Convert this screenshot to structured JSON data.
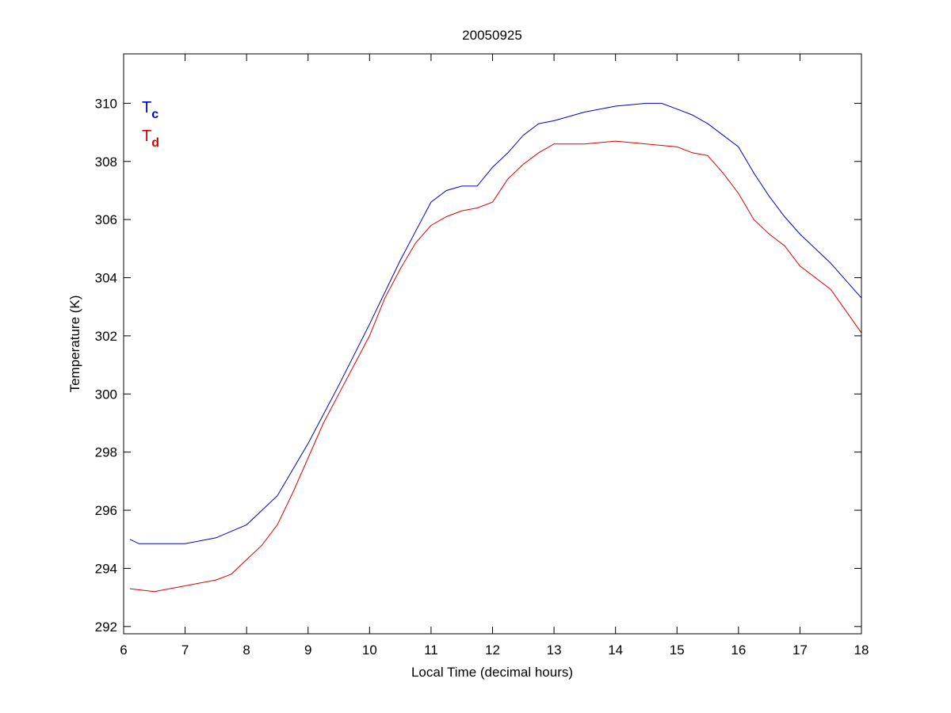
{
  "chart_data": {
    "type": "line",
    "title": "20050925",
    "xlabel": "Local Time (decimal hours)",
    "ylabel": "Temperature (K)",
    "xlim": [
      6,
      18
    ],
    "ylim": [
      291.75,
      311.7
    ],
    "xticks": [
      6,
      7,
      8,
      9,
      10,
      11,
      12,
      13,
      14,
      15,
      16,
      17,
      18
    ],
    "yticks": [
      292,
      294,
      296,
      298,
      300,
      302,
      304,
      306,
      308,
      310
    ],
    "grid": false,
    "legend_position": "top-left",
    "series": [
      {
        "name": "Tc",
        "label_main": "T",
        "label_sub": "c",
        "color": "#0000cc",
        "x": [
          6.1,
          6.25,
          7.0,
          7.5,
          8.0,
          8.5,
          9.0,
          9.5,
          10.0,
          10.5,
          10.75,
          11.0,
          11.25,
          11.5,
          11.75,
          12.0,
          12.25,
          12.5,
          12.75,
          13.0,
          13.5,
          14.0,
          14.5,
          14.75,
          15.0,
          15.25,
          15.5,
          15.75,
          16.0,
          16.25,
          16.5,
          16.75,
          17.0,
          17.5,
          18.0
        ],
        "y": [
          295.0,
          294.85,
          294.85,
          295.05,
          295.5,
          296.5,
          298.3,
          300.3,
          302.4,
          304.6,
          305.6,
          306.6,
          307.0,
          307.15,
          307.15,
          307.8,
          308.3,
          308.9,
          309.3,
          309.4,
          309.7,
          309.9,
          310.0,
          310.0,
          309.8,
          309.6,
          309.3,
          308.9,
          308.5,
          307.6,
          306.8,
          306.1,
          305.5,
          304.5,
          303.3
        ]
      },
      {
        "name": "Td",
        "label_main": "T",
        "label_sub": "d",
        "color": "#dd0000",
        "x": [
          6.1,
          6.5,
          7.0,
          7.5,
          7.75,
          8.0,
          8.25,
          8.5,
          8.75,
          9.0,
          9.25,
          9.5,
          9.75,
          10.0,
          10.25,
          10.5,
          10.75,
          11.0,
          11.25,
          11.5,
          11.75,
          12.0,
          12.25,
          12.5,
          12.75,
          13.0,
          13.5,
          14.0,
          14.5,
          15.0,
          15.25,
          15.5,
          15.75,
          16.0,
          16.25,
          16.5,
          16.75,
          17.0,
          17.5,
          18.0
        ],
        "y": [
          293.3,
          293.2,
          293.4,
          293.6,
          293.8,
          294.3,
          294.8,
          295.5,
          296.6,
          297.8,
          299.0,
          300.0,
          301.0,
          302.0,
          303.3,
          304.3,
          305.2,
          305.8,
          306.1,
          306.3,
          306.4,
          306.6,
          307.4,
          307.9,
          308.3,
          308.6,
          308.6,
          308.7,
          308.6,
          308.5,
          308.3,
          308.2,
          307.6,
          306.9,
          306.0,
          305.5,
          305.1,
          304.4,
          303.6,
          302.1
        ]
      }
    ]
  }
}
